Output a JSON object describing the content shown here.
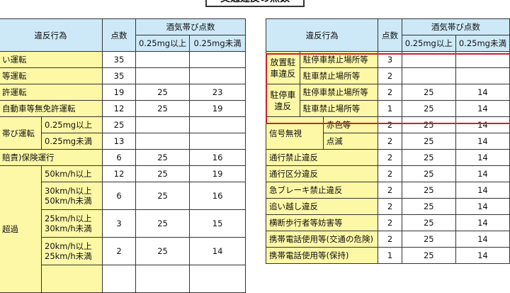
{
  "title": "交通違反の点数",
  "header": {
    "violation": "違反行為",
    "points": "点数",
    "alcohol": "酒気帯び点数",
    "over": "0.25mg以上",
    "under": "0.25mg未満"
  },
  "left": {
    "r1": {
      "label": "い運転",
      "pts": "35",
      "a": "",
      "b": ""
    },
    "r2": {
      "label": "等運転",
      "pts": "35",
      "a": "",
      "b": ""
    },
    "r3": {
      "label": "許運転",
      "pts": "19",
      "a": "25",
      "b": "23"
    },
    "r4": {
      "label": "自動車等無免許運転",
      "pts": "12",
      "a": "25",
      "b": "19"
    },
    "drunk": {
      "label": "帯び運転",
      "s1": "0.25mg以上",
      "p1": "25",
      "s2": "0.25mg未満",
      "p2": "13"
    },
    "r7": {
      "label": "賠責)保険運行",
      "pts": "6",
      "a": "25",
      "b": "16"
    },
    "speed": {
      "label": "超過",
      "rows": [
        {
          "l1": "50km/h以上",
          "l2": "",
          "pts": "12",
          "a": "25",
          "b": "19"
        },
        {
          "l1": "30km/h以上",
          "l2": "50km/h未満",
          "pts": "6",
          "a": "25",
          "b": "16"
        },
        {
          "l1": "25km/h以上",
          "l2": "30km/h未満",
          "pts": "3",
          "a": "25",
          "b": "15"
        },
        {
          "l1": "20km/h以上",
          "l2": "25km/h未満",
          "pts": "2",
          "a": "25",
          "b": "14"
        }
      ]
    }
  },
  "right": {
    "abandon": {
      "label": "放置駐車違反",
      "r1": {
        "s": "駐停車禁止場所等",
        "pts": "3",
        "a": "",
        "b": ""
      },
      "r2": {
        "s": "駐車禁止場所等",
        "pts": "2",
        "a": "",
        "b": ""
      }
    },
    "parking": {
      "label": "駐停車違反",
      "r1": {
        "s": "駐停車禁止場所等",
        "pts": "2",
        "a": "25",
        "b": "14"
      },
      "r2": {
        "s": "駐車禁止場所等",
        "pts": "1",
        "a": "25",
        "b": "14"
      }
    },
    "signal": {
      "label": "信号無視",
      "r1": {
        "s": "赤色等",
        "pts": "2",
        "a": "25",
        "b": "14"
      },
      "r2": {
        "s": "点滅",
        "pts": "2",
        "a": "25",
        "b": "14"
      }
    },
    "rows": [
      {
        "label": "通行禁止違反",
        "pts": "2",
        "a": "25",
        "b": "14"
      },
      {
        "label": "通行区分違反",
        "pts": "2",
        "a": "25",
        "b": "14"
      },
      {
        "label": "急ブレーキ禁止違反",
        "pts": "2",
        "a": "25",
        "b": "14"
      },
      {
        "label": "追い越し違反",
        "pts": "2",
        "a": "25",
        "b": "14"
      },
      {
        "label": "横断歩行者等妨害等",
        "pts": "2",
        "a": "25",
        "b": "14"
      },
      {
        "label": "携帯電話使用等(交通の危険)",
        "pts": "2",
        "a": "25",
        "b": "14"
      },
      {
        "label": "携帯電話使用等(保持)",
        "pts": "1",
        "a": "25",
        "b": "14"
      }
    ]
  },
  "colors": {
    "header": "#cde9f8",
    "label": "#fdf8a6",
    "highlight": "#d0202a"
  }
}
